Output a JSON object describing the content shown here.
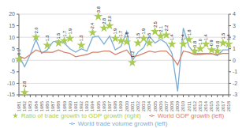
{
  "chart_data": {
    "type": "line",
    "categories": [
      "1981",
      "1982",
      "1983",
      "1984",
      "1985",
      "1986",
      "1987",
      "1988",
      "1989",
      "1990",
      "1991",
      "1992",
      "1993",
      "1994",
      "1995",
      "1996",
      "1997",
      "1998",
      "1999",
      "2000",
      "2001",
      "2002",
      "2003",
      "2004",
      "2005",
      "2006",
      "2007",
      "2008",
      "2009",
      "2010",
      "2011",
      "2012",
      "2013",
      "2014",
      "2015",
      "2016",
      "2017",
      "2018"
    ],
    "series": [
      {
        "name": "World trade volume growth (left)",
        "type": "line",
        "color": "#7aadd4",
        "values": [
          2.0,
          -2.8,
          2.5,
          9.0,
          3.0,
          4.5,
          8.0,
          8.5,
          7.5,
          5.0,
          3.5,
          5.0,
          4.0,
          10.0,
          10.5,
          7.0,
          10.5,
          4.5,
          6.0,
          12.5,
          -0.2,
          3.5,
          5.5,
          10.5,
          7.5,
          9.0,
          7.5,
          3.0,
          -13.5,
          14.0,
          6.0,
          3.0,
          3.0,
          3.0,
          3.0,
          2.0,
          4.5,
          4.5
        ]
      },
      {
        "name": "World GDP growth (left)",
        "type": "line",
        "color": "#d4826a",
        "values": [
          1.8,
          0.8,
          2.5,
          4.5,
          3.5,
          3.5,
          3.5,
          4.5,
          3.5,
          3.0,
          1.5,
          2.0,
          2.5,
          3.5,
          3.5,
          4.0,
          4.0,
          2.5,
          3.5,
          4.5,
          1.5,
          2.0,
          3.0,
          4.0,
          3.5,
          4.0,
          4.0,
          1.5,
          -2.0,
          4.0,
          3.5,
          2.5,
          2.5,
          2.8,
          2.8,
          2.5,
          3.0,
          3.0
        ]
      },
      {
        "name": "Ratio of trade growth to GDP growth (right)",
        "type": "scatter",
        "axis": "y2",
        "color": "#aacc55",
        "marker": "star",
        "values": [
          0.1,
          -2.8,
          null,
          2.0,
          null,
          1.3,
          null,
          1.5,
          1.7,
          1.9,
          null,
          1.3,
          null,
          2.4,
          3.8,
          2.8,
          3.0,
          1.9,
          1.7,
          1.6,
          -0.2,
          1.5,
          1.9,
          1.5,
          2.5,
          2.1,
          2.2,
          1.4,
          null,
          1.4,
          1.8,
          0.8,
          1.0,
          1.4,
          0.9,
          0.8,
          1.5,
          1.4
        ],
        "value_labels": [
          "0.1",
          "-2.8",
          null,
          "2.0",
          null,
          "1.3",
          null,
          "1.5",
          "1.7",
          "1.9",
          null,
          "1.3",
          null,
          "2.4",
          "3.8",
          "2.8",
          "3.0",
          "1.9",
          "1.7",
          "1.6",
          "-0.2",
          "1.5",
          "1.9",
          "1.5",
          "2.5",
          "2.1",
          "2.2",
          "1.4",
          null,
          "1.4",
          "1.8",
          "0.8",
          "1.0",
          "1.4",
          "0.9",
          "0.8",
          "1.5",
          "1.4"
        ]
      }
    ],
    "ylim": [
      -15,
      20
    ],
    "yticks": [
      -15,
      -10,
      -5,
      0,
      5,
      10,
      15,
      20
    ],
    "y2lim": [
      -3,
      4
    ],
    "y2ticks": [
      -3,
      -2,
      -1,
      0,
      1,
      2,
      3,
      4
    ],
    "grid": true,
    "data_labels": true,
    "legend": "bottom"
  }
}
